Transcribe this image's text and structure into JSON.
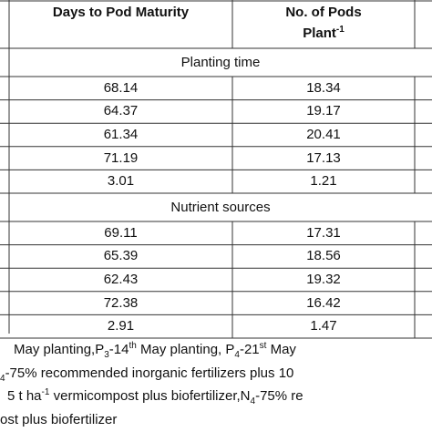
{
  "table": {
    "header": [
      {
        "text": "Days to Pod Maturity"
      },
      {
        "lines": [
          "No. of Pods",
          "Plant"
        ],
        "sup": "-1"
      }
    ],
    "sections": [
      {
        "title": "Planting time",
        "rows": [
          [
            "68.14",
            "18.34"
          ],
          [
            "64.37",
            "19.17"
          ],
          [
            "61.34",
            "20.41"
          ],
          [
            "71.19",
            "17.13"
          ],
          [
            "3.01",
            "1.21"
          ]
        ]
      },
      {
        "title": "Nutrient sources",
        "rows": [
          [
            "69.11",
            "17.31"
          ],
          [
            "65.39",
            "18.56"
          ],
          [
            "62.43",
            "19.32"
          ],
          [
            "72.38",
            "16.42"
          ],
          [
            "2.91",
            "1.47"
          ]
        ]
      }
    ]
  },
  "footnotes": [
    [
      "May planting,P",
      {
        "sub": "3"
      },
      "-14",
      {
        "sup": "th"
      },
      " May planting, P",
      {
        "sub": "4"
      },
      "-21",
      {
        "sup": "st"
      },
      " May"
    ],
    [
      {
        "sub": "4"
      },
      "-75% recommended inorganic fertilizers plus 10"
    ],
    [
      "5 t ha",
      {
        "sup": "-1"
      },
      " vermicompost plus biofertilizer,N",
      {
        "sub": "4"
      },
      "-75% re"
    ],
    [
      "ost plus biofertilizer"
    ]
  ]
}
